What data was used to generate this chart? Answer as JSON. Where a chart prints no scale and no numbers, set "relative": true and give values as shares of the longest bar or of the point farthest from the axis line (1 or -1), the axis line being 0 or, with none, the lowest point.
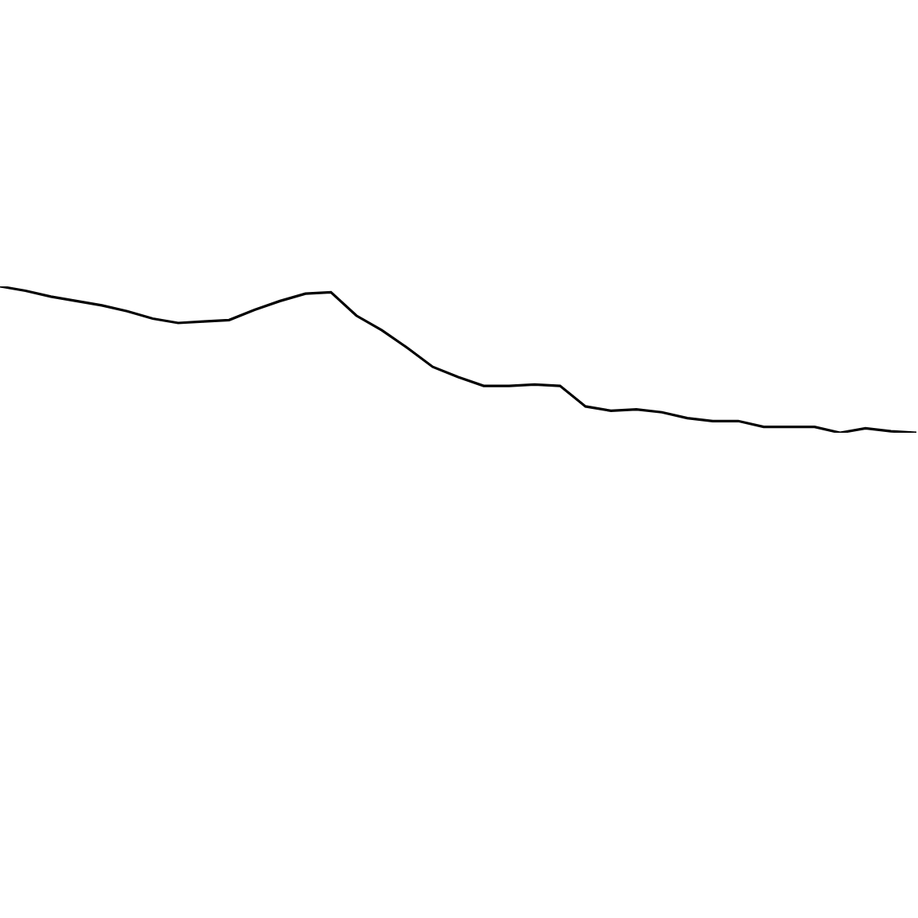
{
  "chart_data": {
    "type": "line",
    "relative": true,
    "categories": [
      null,
      null,
      null,
      null,
      null,
      null,
      null,
      null,
      null,
      null,
      null,
      null,
      null,
      null,
      null,
      null,
      null,
      null,
      null,
      null,
      null,
      null,
      null,
      null,
      null,
      null,
      null,
      null,
      null,
      null,
      null,
      null,
      null,
      null,
      null,
      null,
      null
    ],
    "series": [
      {
        "color": "#000000",
        "values": [
          1.0,
          0.97,
          0.93,
          0.9,
          0.87,
          0.83,
          0.78,
          0.75,
          0.76,
          0.77,
          0.84,
          0.9,
          0.95,
          0.96,
          0.8,
          0.7,
          0.58,
          0.45,
          0.38,
          0.32,
          0.32,
          0.33,
          0.32,
          0.18,
          0.15,
          0.16,
          0.14,
          0.1,
          0.08,
          0.08,
          0.04,
          0.04,
          0.04,
          0.0,
          0.03,
          0.01,
          0.0
        ]
      }
    ]
  }
}
